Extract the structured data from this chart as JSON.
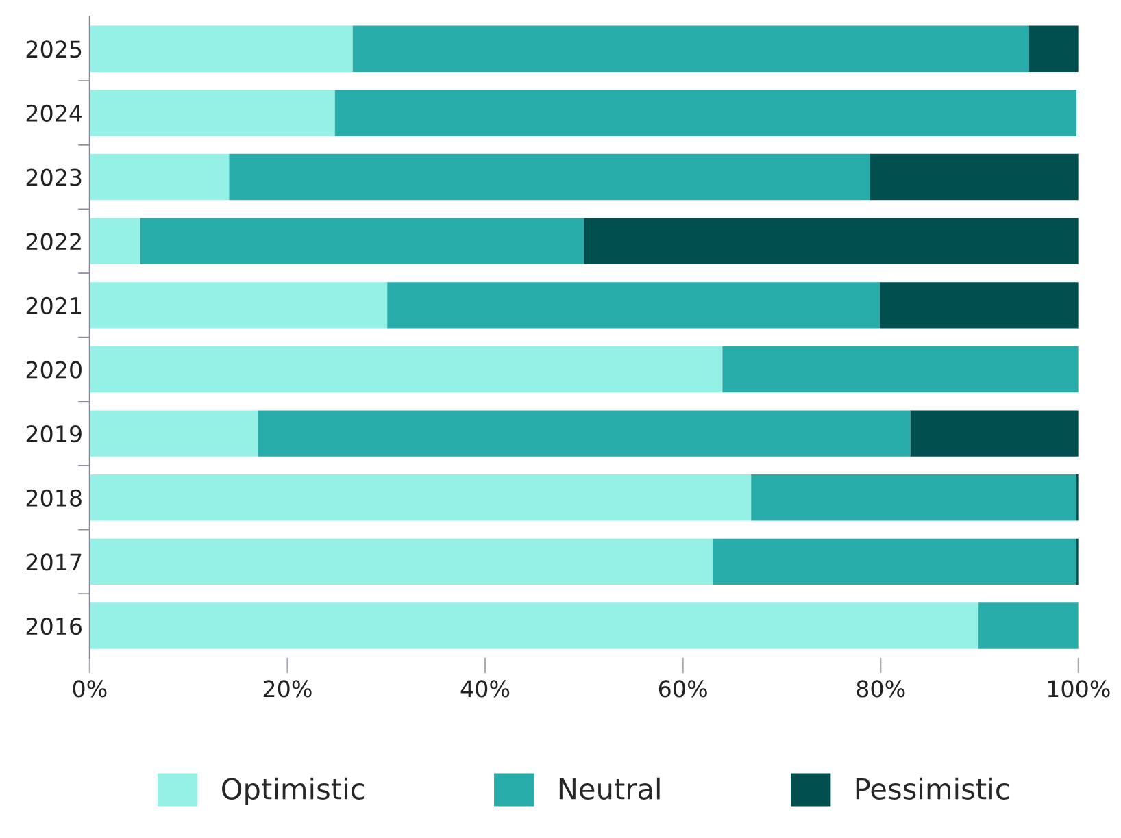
{
  "chart_data": {
    "type": "bar",
    "orientation": "horizontal",
    "stacked": true,
    "categories": [
      "2025",
      "2024",
      "2023",
      "2022",
      "2021",
      "2020",
      "2019",
      "2018",
      "2017",
      "2016"
    ],
    "series": [
      {
        "name": "Optimistic",
        "color": "#95f0e6",
        "values": [
          26.6,
          24.8,
          14.1,
          5.1,
          30.1,
          64,
          17,
          66.9,
          63,
          89.9
        ]
      },
      {
        "name": "Neutral",
        "color": "#28aca9",
        "values": [
          68.4,
          75,
          64.8,
          44.9,
          49.8,
          36,
          66,
          32.9,
          36.8,
          10.1
        ]
      },
      {
        "name": "Pessimistic",
        "color": "#024f50",
        "values": [
          5,
          0,
          21.1,
          50,
          20.1,
          0,
          17,
          0.2,
          0.2,
          0
        ]
      }
    ],
    "xlim": [
      0,
      100
    ],
    "xticks": [
      {
        "value": 0,
        "label": "0%"
      },
      {
        "value": 20,
        "label": "20%"
      },
      {
        "value": 40,
        "label": "40%"
      },
      {
        "value": 60,
        "label": "60%"
      },
      {
        "value": 80,
        "label": "80%"
      },
      {
        "value": 100,
        "label": "100%"
      }
    ],
    "grid": false,
    "legend": "bottom"
  }
}
